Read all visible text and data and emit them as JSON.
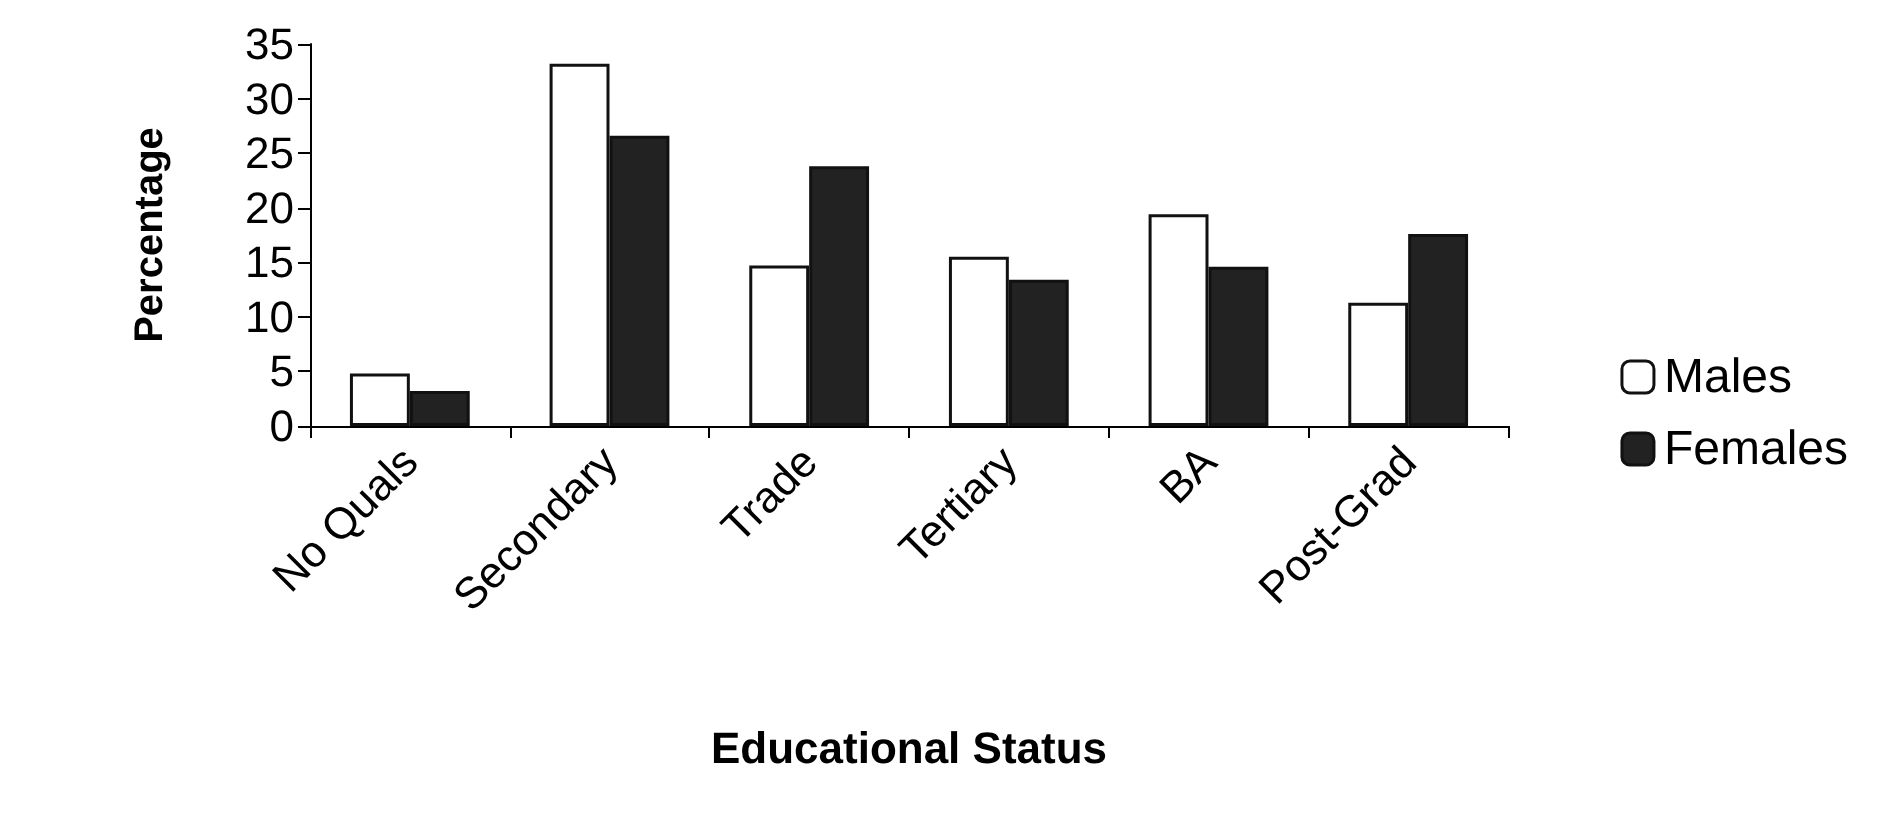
{
  "chart_data": {
    "type": "bar",
    "xlabel": "Educational Status",
    "ylabel": "Percentage",
    "categories": [
      "No Quals",
      "Secondary",
      "Trade",
      "Tertiary",
      "BA",
      "Post-Grad"
    ],
    "series": [
      {
        "name": "Males",
        "color": "#ffffff",
        "values": [
          4.8,
          33.2,
          14.7,
          15.5,
          19.4,
          11.3
        ]
      },
      {
        "name": "Females",
        "color": "#222222",
        "values": [
          3.2,
          26.6,
          23.8,
          13.4,
          14.6,
          17.6
        ]
      }
    ],
    "ylim": [
      0,
      35
    ],
    "yticks": [
      0,
      5,
      10,
      15,
      20,
      25,
      30,
      35
    ],
    "grid": false,
    "legend": "right"
  }
}
